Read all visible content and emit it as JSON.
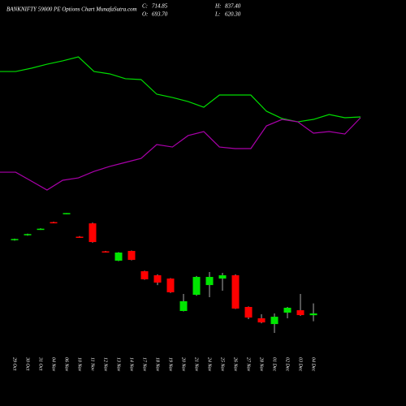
{
  "chart_data": {
    "type": "candlestick",
    "title": "BANKNIFTY 59000  PE Options Chart MunafaSutra.com",
    "summary": [
      {
        "label": "C:",
        "value": 714.85,
        "value_label": "714.85"
      },
      {
        "label": "O:",
        "value": 693.7,
        "value_label": "693.70"
      },
      {
        "label": "H:",
        "value": 837.4,
        "value_label": "837.40"
      },
      {
        "label": "L:",
        "value": 620.3,
        "value_label": "620.30"
      }
    ],
    "categories": [
      "29 Oct",
      "30 Oct",
      "31 Oct",
      "04 Nov",
      "06 Nov",
      "10 Nov",
      "11 Nov",
      "12 Nov",
      "13 Nov",
      "14 Nov",
      "17 Nov",
      "18 Nov",
      "19 Nov",
      "20 Nov",
      "21 Nov",
      "24 Nov",
      "25 Nov",
      "26 Nov",
      "27 Nov",
      "28 Nov",
      "01 Dec",
      "02 Dec",
      "03 Dec",
      "04 Dec"
    ],
    "open": [
      1605,
      1665,
      1735,
      1825,
      1925,
      1648,
      1810,
      1470,
      1356,
      1475,
      1228,
      1179,
      1139,
      745,
      942,
      1060,
      1139,
      1179,
      794,
      656,
      586,
      725,
      754,
      693.7
    ],
    "high": [
      1625,
      1685,
      1750,
      1830,
      1935,
      1655,
      1820,
      1475,
      1460,
      1480,
      1235,
      1190,
      1145,
      952,
      1170,
      1219,
      1209,
      1190,
      800,
      705,
      715,
      794,
      952,
      837.4
    ],
    "low": [
      1600,
      1660,
      1730,
      1815,
      1920,
      1640,
      1575,
      1460,
      1350,
      1360,
      1125,
      1060,
      965,
      740,
      930,
      912,
      991,
      770,
      646,
      596,
      478,
      656,
      685,
      620.3
    ],
    "close": [
      1620,
      1680,
      1745,
      1815,
      1935,
      1640,
      1583,
      1462,
      1455,
      1366,
      1130,
      1090,
      972,
      863,
      1159,
      1159,
      1179,
      774,
      665,
      606,
      675,
      784,
      695,
      714.85
    ],
    "up_color": "#00e600",
    "down_color": "#ff0000",
    "lines": [
      {
        "color": "#00dd00",
        "values": [
          3656,
          3656,
          3696,
          3745,
          3785,
          3834,
          3656,
          3627,
          3568,
          3558,
          3380,
          3340,
          3291,
          3222,
          3370,
          3370,
          3370,
          3173,
          3084,
          3044,
          3074,
          3133,
          3094,
          3104
        ]
      },
      {
        "color": "#aa00aa",
        "values": [
          2432,
          2432,
          2324,
          2215,
          2334,
          2363,
          2442,
          2502,
          2551,
          2600,
          2768,
          2738,
          2877,
          2926,
          2738,
          2719,
          2719,
          2995,
          3074,
          3044,
          2906,
          2926,
          2896,
          3094
        ]
      }
    ],
    "ylim": [
      -410,
      4525
    ]
  }
}
